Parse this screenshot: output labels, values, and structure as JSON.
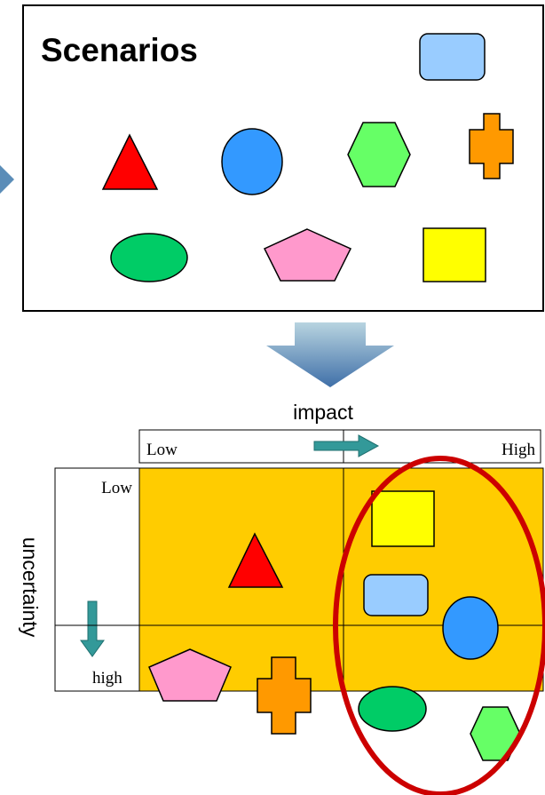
{
  "scenarios_panel": {
    "title": "Scenarios",
    "shapes": [
      {
        "name": "rounded-rectangle",
        "color": "#99CCFF"
      },
      {
        "name": "triangle",
        "color": "#FF0000"
      },
      {
        "name": "circle",
        "color": "#3399FF"
      },
      {
        "name": "hexagon",
        "color": "#66FF66"
      },
      {
        "name": "cross",
        "color": "#FF9900"
      },
      {
        "name": "ellipse",
        "color": "#00CC66"
      },
      {
        "name": "pentagon",
        "color": "#FF99CC"
      },
      {
        "name": "square",
        "color": "#FFFF00"
      }
    ]
  },
  "matrix": {
    "impact_label": "impact",
    "uncertainty_label": "uncertainty",
    "impact_low": "Low",
    "impact_high": "High",
    "uncertainty_low": "Low",
    "uncertainty_high": "high",
    "quadrant_color": "#FFCC00",
    "highlight_color": "#CC0000"
  },
  "colors": {
    "arrow": "#5B8DB8",
    "small_arrow": "#339999"
  }
}
